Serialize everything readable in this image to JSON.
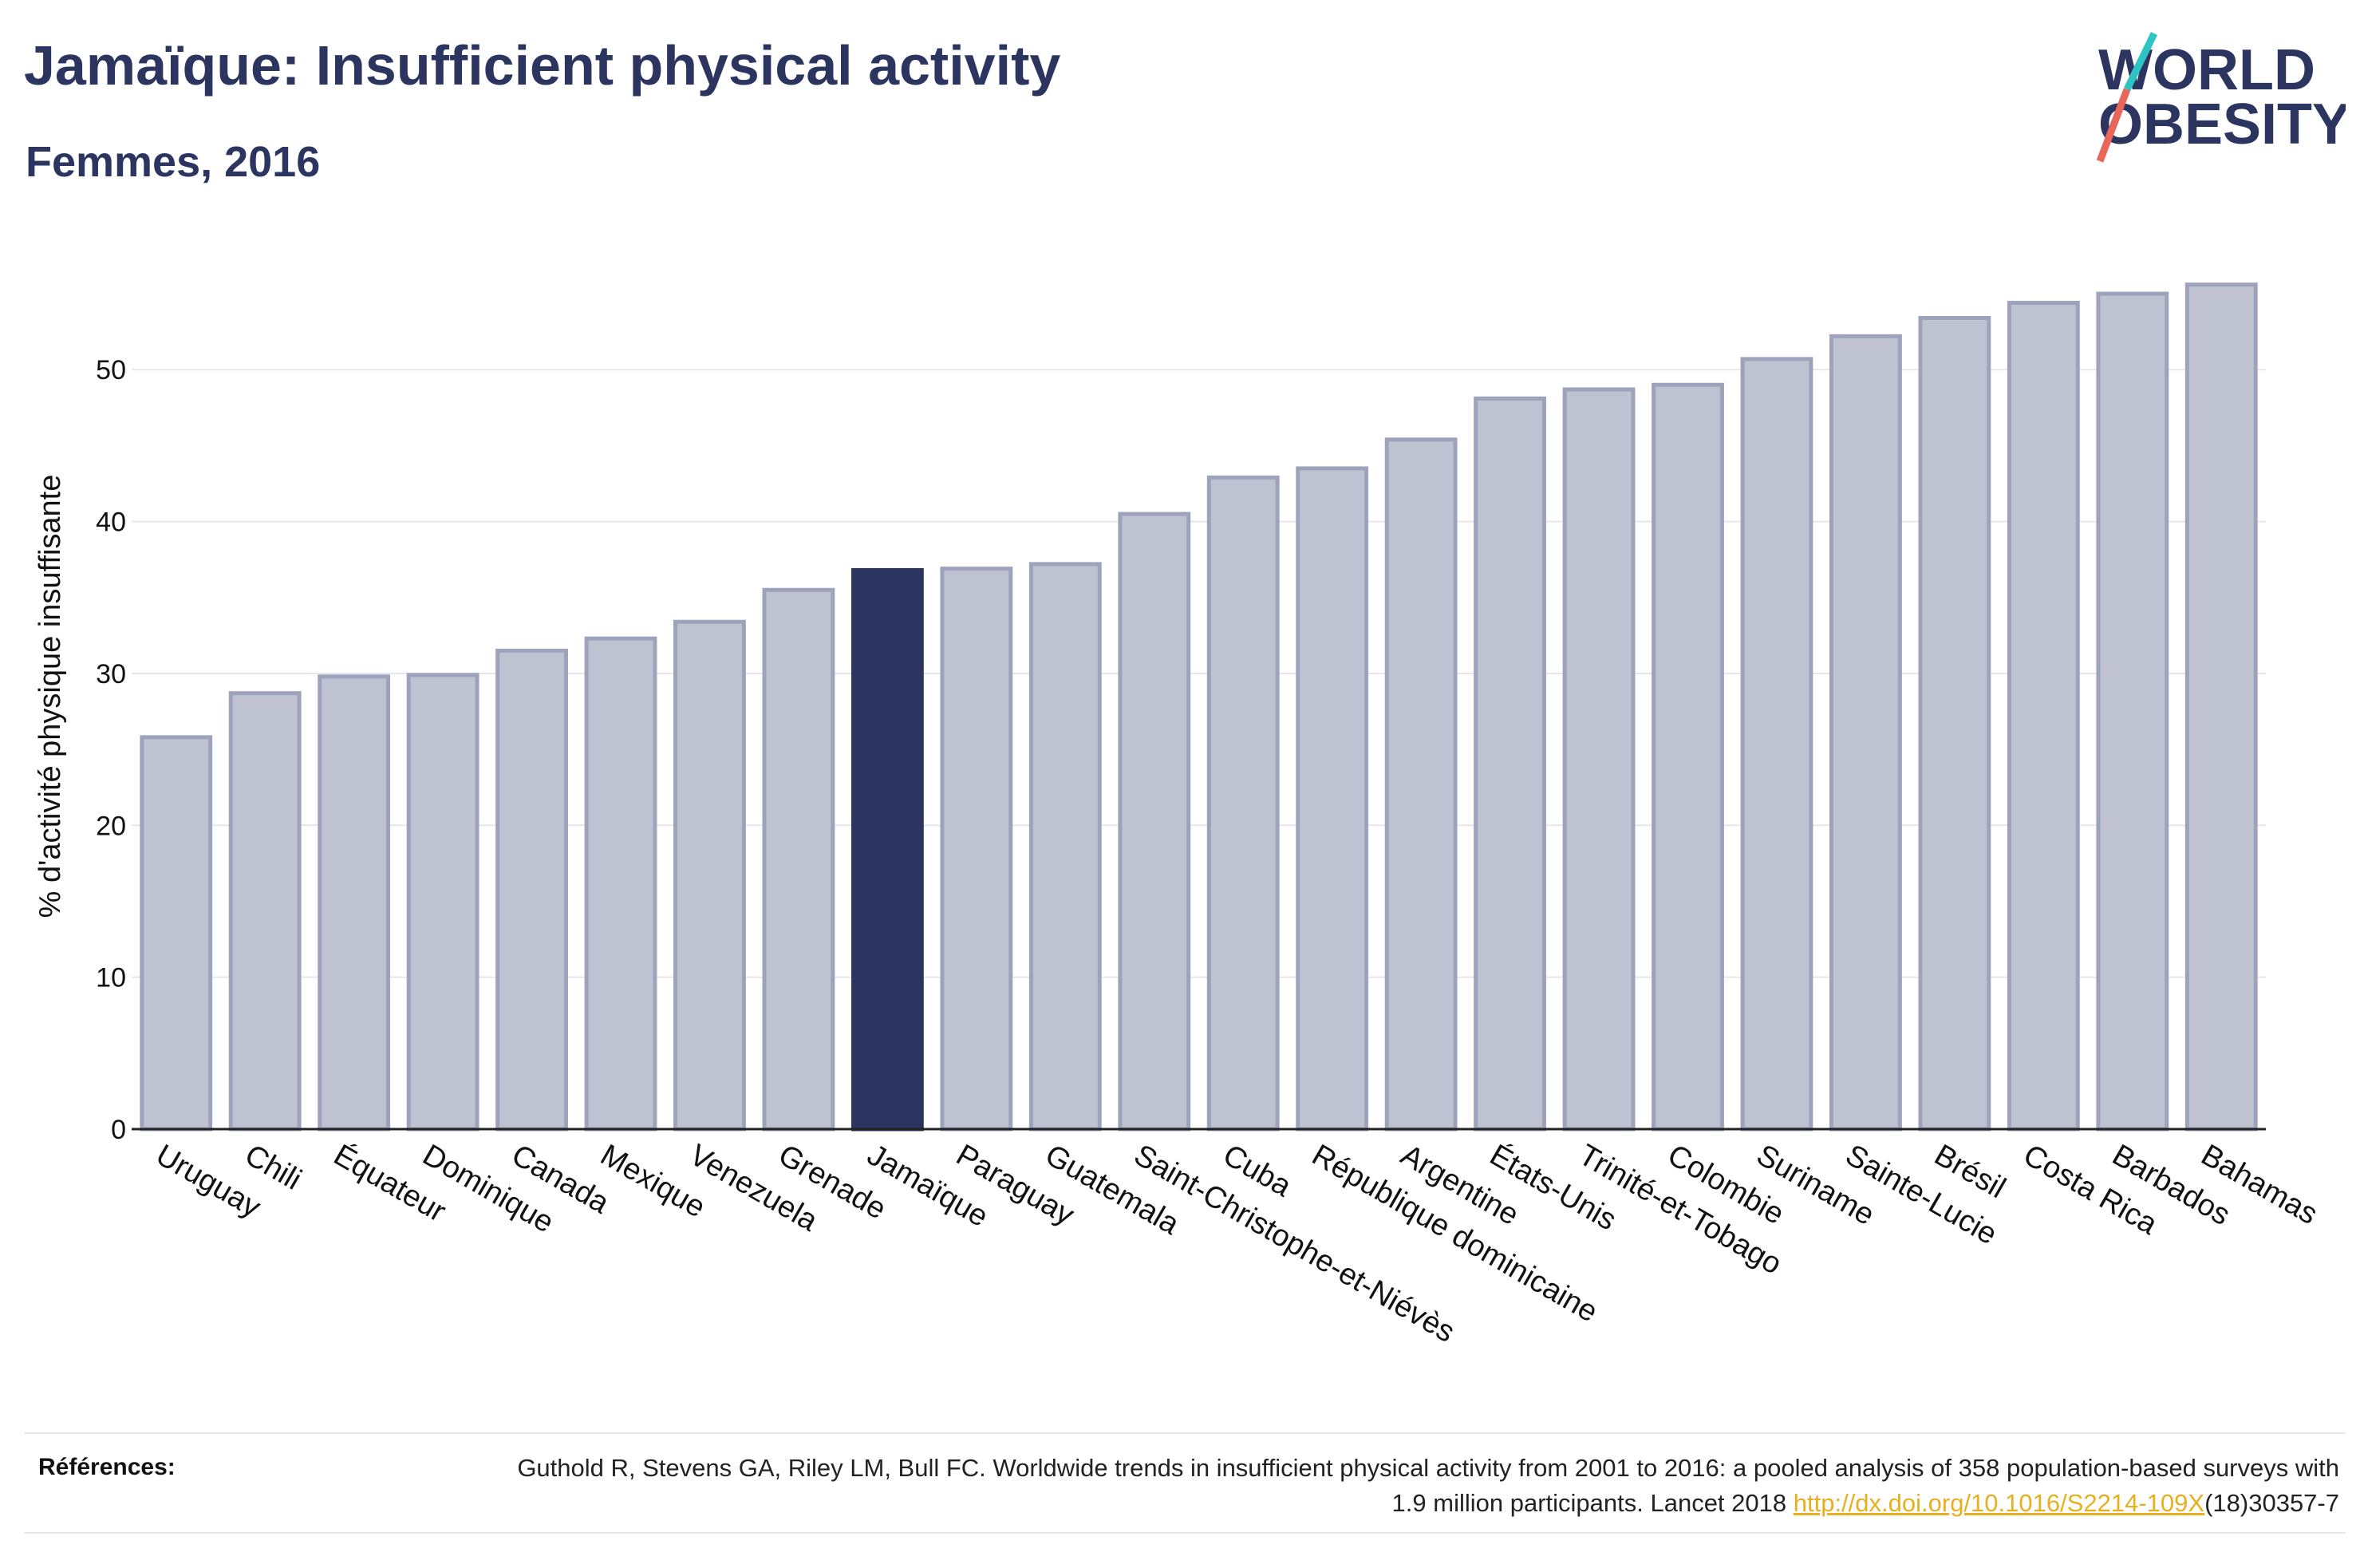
{
  "header": {
    "title": "Jamaïque: Insufficient physical activity",
    "subtitle": "Femmes, 2016"
  },
  "logo": {
    "line1": "WORLD",
    "line2": "OBESITY"
  },
  "colors": {
    "bar": "#bfc2d0",
    "bar_stroke": "#9da3bb",
    "highlight": "#2b3560",
    "text": "#2b3560"
  },
  "chart_data": {
    "type": "bar",
    "ylabel": "% d'activité physique insuffisante",
    "xlabel": "",
    "ylim": [
      0,
      57
    ],
    "yticks": [
      0,
      10,
      20,
      30,
      40,
      50
    ],
    "grid": true,
    "highlight": "Jamaïque",
    "categories": [
      "Uruguay",
      "Chili",
      "Équateur",
      "Dominique",
      "Canada",
      "Mexique",
      "Venezuela",
      "Grenade",
      "Jamaïque",
      "Paraguay",
      "Guatemala",
      "Saint-Christophe-et-Niévès",
      "Cuba",
      "République dominicaine",
      "Argentine",
      "États-Unis",
      "Trinité-et-Tobago",
      "Colombie",
      "Suriname",
      "Sainte-Lucie",
      "Brésil",
      "Costa Rica",
      "Barbados",
      "Bahamas"
    ],
    "values": [
      25.8,
      28.7,
      29.8,
      29.9,
      31.5,
      32.3,
      33.4,
      35.5,
      36.8,
      36.9,
      37.2,
      40.5,
      42.9,
      43.5,
      45.4,
      48.1,
      48.7,
      49.0,
      50.7,
      52.2,
      53.4,
      54.4,
      55.0,
      55.6
    ]
  },
  "references": {
    "label": "Références:",
    "text_before_link": "Guthold R, Stevens GA, Riley LM, Bull FC. Worldwide trends in insufficient physical activity from 2001 to 2016: a pooled analysis of 358 population-based surveys with 1.9 million participants. Lancet 2018 ",
    "link": "http://dx.doi.org/10.1016/S2214-109X",
    "text_after_link": "(18)30357-7"
  }
}
